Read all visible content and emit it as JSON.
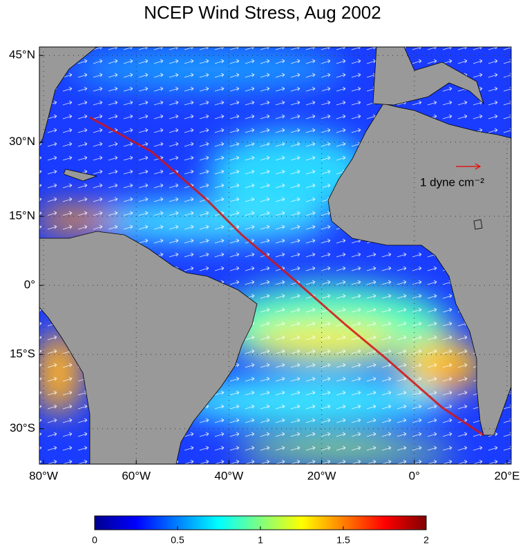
{
  "title": "NCEP Wind Stress, Aug 2002",
  "map": {
    "xlim": [
      -80.9,
      20.9
    ],
    "ylim": [
      -36.5,
      46.3
    ],
    "xticks": [
      {
        "value": -80,
        "label": "80°W"
      },
      {
        "value": -60,
        "label": "60°W"
      },
      {
        "value": -40,
        "label": "40°W"
      },
      {
        "value": -20,
        "label": "20°W"
      },
      {
        "value": 0,
        "label": "0°"
      },
      {
        "value": 20,
        "label": "20°E"
      }
    ],
    "yticks": [
      {
        "value": 45,
        "label": "45°N"
      },
      {
        "value": 30,
        "label": "30°N"
      },
      {
        "value": 15,
        "label": "15°N"
      },
      {
        "value": 0,
        "label": "0°"
      },
      {
        "value": -15,
        "label": "15°S"
      },
      {
        "value": -30,
        "label": "30°S"
      }
    ],
    "grid": true
  },
  "scale_label": "1 dyne cm⁻²",
  "colorbar": {
    "lim": [
      0,
      2
    ],
    "ticks": [
      0,
      0.5,
      1,
      1.5,
      2
    ]
  }
}
